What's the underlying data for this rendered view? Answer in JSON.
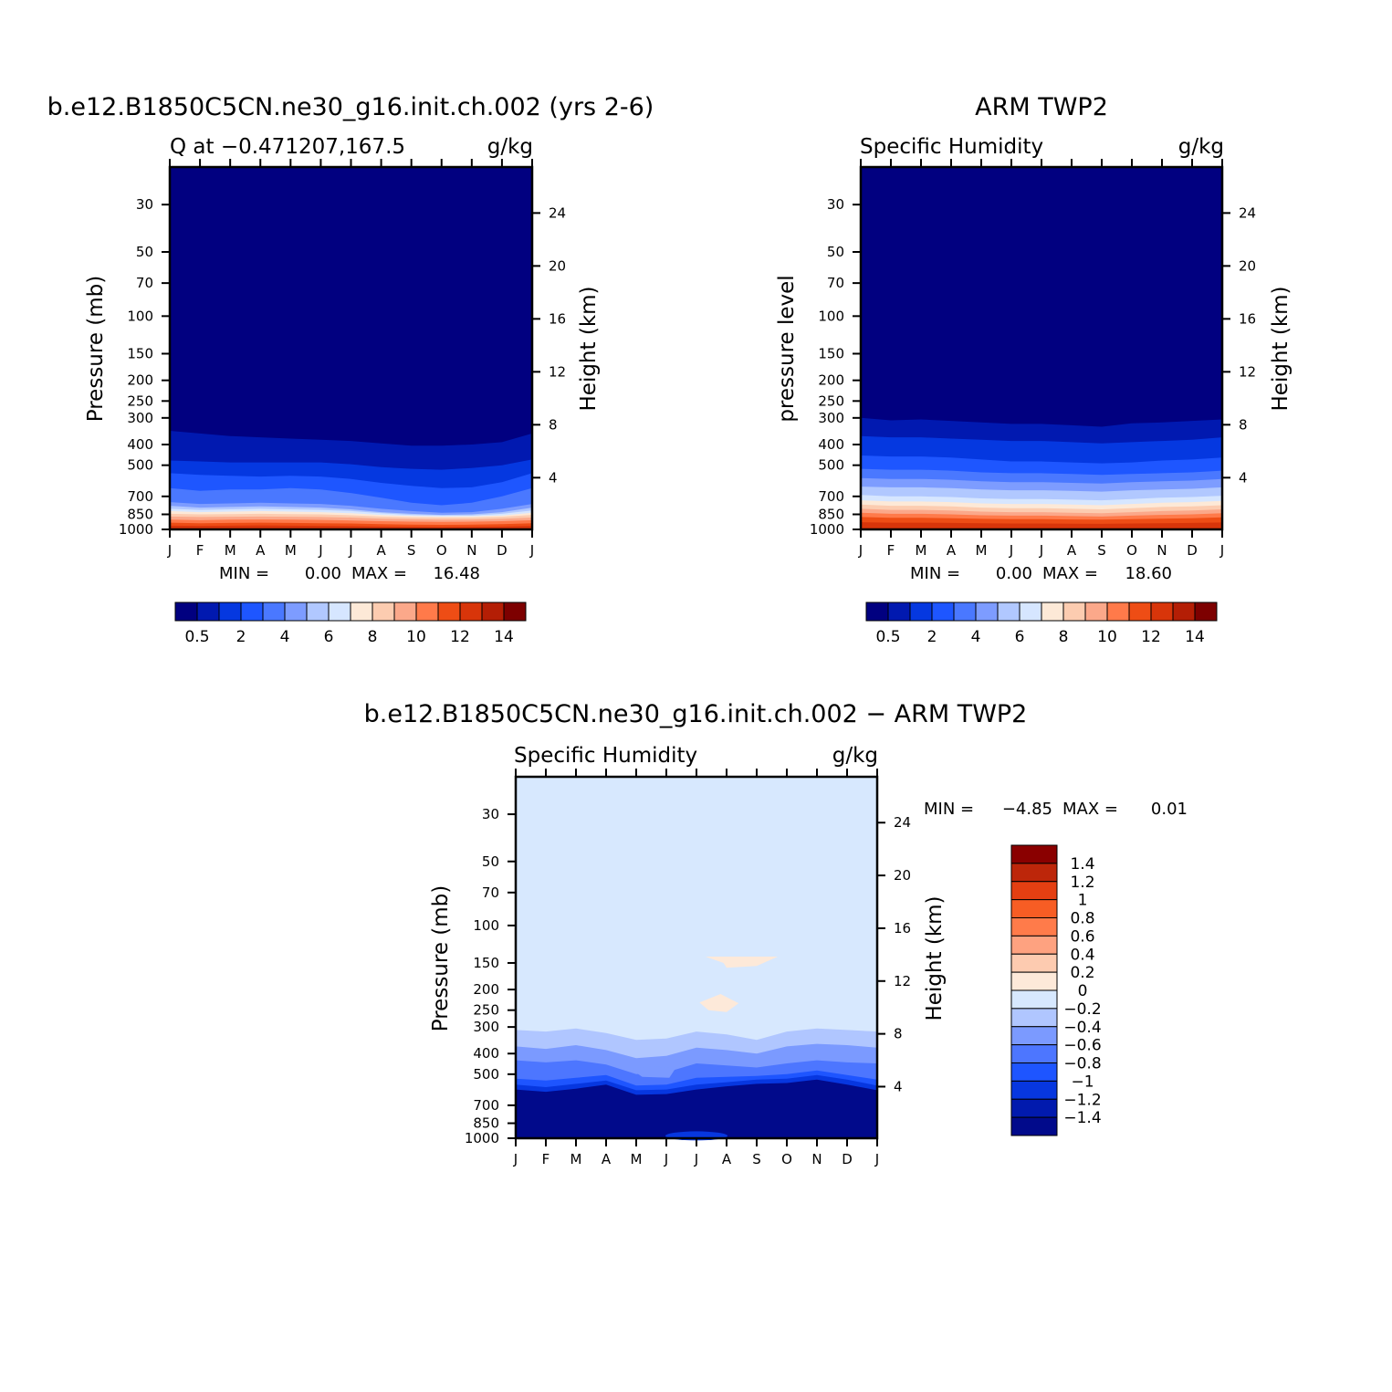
{
  "chart_data": [
    {
      "type": "heatmap",
      "title": "b.e12.B1850C5CN.ne30_g16.init.ch.002 (yrs 2-6)",
      "subtitle_left": "Q  at  −0.471207,167.5",
      "subtitle_right": "g/kg",
      "ylabel": "Pressure  (mb)",
      "y2label": "Height  (km)",
      "x": [
        "J",
        "F",
        "M",
        "A",
        "M",
        "J",
        "J",
        "A",
        "S",
        "O",
        "N",
        "D",
        "J"
      ],
      "y_ticks": [
        "30",
        "50",
        "70",
        "100",
        "150",
        "200",
        "250",
        "300",
        "400",
        "500",
        "700",
        "850",
        "1000"
      ],
      "y2_ticks": [
        "24",
        "20",
        "16",
        "12",
        "8",
        "4"
      ],
      "min_text": "MIN =",
      "min_value": "0.00",
      "max_text": "MAX =",
      "max_value": "16.48",
      "colorbar_labels": [
        "0.5",
        "2",
        "4",
        "6",
        "8",
        "10",
        "12",
        "14"
      ],
      "level_bottoms_mb": [
        [
          345,
          355,
          365,
          370,
          375,
          380,
          385,
          395,
          405,
          405,
          400,
          390,
          355
        ],
        [
          475,
          480,
          485,
          485,
          485,
          485,
          495,
          510,
          520,
          525,
          515,
          500,
          470
        ],
        [
          545,
          555,
          560,
          565,
          560,
          565,
          580,
          605,
          625,
          640,
          635,
          600,
          545
        ],
        [
          640,
          660,
          650,
          650,
          640,
          650,
          675,
          710,
          750,
          770,
          750,
          700,
          640
        ],
        [
          745,
          760,
          755,
          750,
          755,
          760,
          775,
          800,
          820,
          835,
          830,
          800,
          760
        ],
        [
          775,
          790,
          785,
          780,
          785,
          790,
          805,
          830,
          845,
          855,
          850,
          830,
          790
        ],
        [
          800,
          810,
          805,
          800,
          805,
          810,
          820,
          840,
          855,
          860,
          860,
          845,
          815
        ],
        [
          820,
          830,
          825,
          820,
          825,
          830,
          840,
          855,
          865,
          870,
          868,
          860,
          835
        ],
        [
          845,
          850,
          848,
          845,
          848,
          850,
          858,
          870,
          878,
          880,
          880,
          872,
          855
        ],
        [
          870,
          875,
          872,
          870,
          872,
          875,
          880,
          890,
          895,
          900,
          898,
          892,
          880
        ],
        [
          900,
          905,
          900,
          898,
          900,
          903,
          908,
          915,
          920,
          922,
          920,
          915,
          905
        ],
        [
          930,
          935,
          932,
          930,
          932,
          935,
          938,
          945,
          950,
          952,
          950,
          945,
          935
        ],
        [
          960,
          962,
          960,
          958,
          960,
          962,
          965,
          970,
          972,
          975,
          972,
          970,
          962
        ]
      ]
    },
    {
      "type": "heatmap",
      "title": "ARM TWP2",
      "subtitle_left": "Specific Humidity",
      "subtitle_right": "g/kg",
      "ylabel": "pressure  level",
      "y2label": "Height  (km)",
      "x": [
        "J",
        "F",
        "M",
        "A",
        "M",
        "J",
        "J",
        "A",
        "S",
        "O",
        "N",
        "D",
        "J"
      ],
      "y_ticks": [
        "30",
        "50",
        "70",
        "100",
        "150",
        "200",
        "250",
        "300",
        "400",
        "500",
        "700",
        "850",
        "1000"
      ],
      "y2_ticks": [
        "24",
        "20",
        "16",
        "12",
        "8",
        "4"
      ],
      "min_text": "MIN =",
      "min_value": "0.00",
      "max_text": "MAX =",
      "max_value": "18.60",
      "colorbar_labels": [
        "0.5",
        "2",
        "4",
        "6",
        "8",
        "10",
        "12",
        "14"
      ],
      "level_bottoms_mb": [
        [
          300,
          308,
          305,
          310,
          315,
          320,
          320,
          325,
          330,
          318,
          315,
          310,
          305
        ],
        [
          365,
          370,
          370,
          375,
          380,
          385,
          385,
          390,
          395,
          390,
          385,
          380,
          370
        ],
        [
          450,
          455,
          455,
          460,
          470,
          480,
          480,
          485,
          490,
          485,
          475,
          470,
          460
        ],
        [
          520,
          525,
          525,
          530,
          540,
          545,
          545,
          550,
          555,
          550,
          545,
          540,
          530
        ],
        [
          575,
          580,
          580,
          585,
          595,
          600,
          600,
          605,
          610,
          600,
          595,
          590,
          580
        ],
        [
          630,
          635,
          635,
          640,
          650,
          655,
          655,
          660,
          665,
          655,
          650,
          645,
          635
        ],
        [
          690,
          700,
          700,
          705,
          715,
          720,
          720,
          725,
          730,
          720,
          710,
          705,
          695
        ],
        [
          730,
          740,
          740,
          745,
          755,
          760,
          760,
          765,
          770,
          760,
          750,
          745,
          735
        ],
        [
          765,
          775,
          775,
          780,
          790,
          795,
          795,
          800,
          805,
          795,
          785,
          780,
          770
        ],
        [
          800,
          810,
          810,
          815,
          825,
          830,
          830,
          835,
          840,
          830,
          820,
          815,
          805
        ],
        [
          835,
          845,
          845,
          850,
          858,
          862,
          862,
          866,
          870,
          862,
          855,
          850,
          840
        ],
        [
          875,
          882,
          882,
          886,
          892,
          895,
          895,
          898,
          900,
          895,
          890,
          886,
          878
        ],
        [
          925,
          930,
          930,
          932,
          936,
          938,
          938,
          940,
          942,
          938,
          935,
          932,
          928
        ]
      ]
    },
    {
      "type": "heatmap",
      "title": "b.e12.B1850C5CN.ne30_g16.init.ch.002  −  ARM TWP2",
      "subtitle_left": "Specific Humidity",
      "subtitle_right": "g/kg",
      "ylabel": "Pressure  (mb)",
      "y2label": "Height  (km)",
      "x": [
        "J",
        "F",
        "M",
        "A",
        "M",
        "J",
        "J",
        "A",
        "S",
        "O",
        "N",
        "D",
        "J"
      ],
      "y_ticks": [
        "30",
        "50",
        "70",
        "100",
        "150",
        "200",
        "250",
        "300",
        "400",
        "500",
        "700",
        "850",
        "1000"
      ],
      "y2_ticks": [
        "24",
        "20",
        "16",
        "12",
        "8",
        "4"
      ],
      "min_text": "MIN =",
      "min_value": "−4.85",
      "max_text": "MAX =",
      "max_value": "0.01",
      "colorbar_labels": [
        "1.4",
        "1.2",
        "1",
        "0.8",
        "0.6",
        "0.4",
        "0.2",
        "0",
        "−0.2",
        "−0.4",
        "−0.6",
        "−0.8",
        "−1",
        "−1.2",
        "−1.4"
      ],
      "level_bottoms_mb": [
        [
          310,
          315,
          305,
          320,
          345,
          340,
          315,
          325,
          345,
          315,
          305,
          310,
          315
        ],
        [
          370,
          380,
          365,
          385,
          420,
          410,
          375,
          385,
          400,
          370,
          360,
          365,
          375
        ],
        [
          430,
          440,
          430,
          450,
          500,
          490,
          445,
          455,
          465,
          445,
          430,
          440,
          445
        ],
        [
          525,
          535,
          520,
          505,
          565,
          560,
          520,
          515,
          510,
          500,
          480,
          505,
          530
        ],
        [
          560,
          575,
          555,
          535,
          595,
          590,
          560,
          545,
          530,
          525,
          505,
          530,
          565
        ],
        [
          590,
          605,
          585,
          560,
          625,
          620,
          590,
          570,
          555,
          550,
          530,
          560,
          595
        ]
      ]
    }
  ],
  "colors": {
    "seq": [
      "#010080",
      "#0119b0",
      "#0538e0",
      "#1e56ff",
      "#4a78ff",
      "#7d9cff",
      "#b1c8ff",
      "#d6e6ff",
      "#fde9d7",
      "#fcccb0",
      "#fba88a",
      "#ff7a4a",
      "#ee4d15",
      "#d8350a",
      "#b41e05",
      "#7d0000"
    ],
    "diff": [
      "#8a0000",
      "#bd260a",
      "#e43f12",
      "#f75d24",
      "#ff7b4a",
      "#fea280",
      "#fdcbb0",
      "#fde9d9",
      "#d7e8fe",
      "#b0c6ff",
      "#7b9aff",
      "#4d76ff",
      "#1e55ff",
      "#0737e0",
      "#011aae",
      "#010a8b"
    ]
  }
}
